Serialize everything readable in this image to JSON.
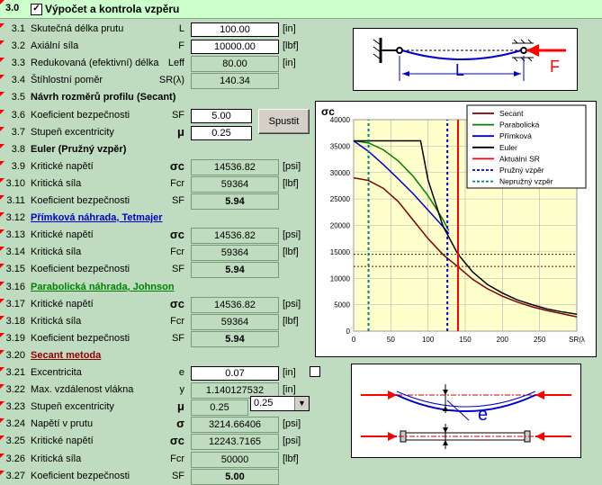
{
  "header": {
    "num": "3.0",
    "title": "Výpočet a kontrola vzpěru",
    "checked": true
  },
  "rows": [
    {
      "id": "r31",
      "num": "3.1",
      "label": "Skutečná délka prutu",
      "sym": "L",
      "value": "100.00",
      "unit": "[in]",
      "kind": "input"
    },
    {
      "id": "r32",
      "num": "3.2",
      "label": "Axiální síla",
      "sym": "F",
      "value": "10000.00",
      "unit": "[lbf]",
      "kind": "input"
    },
    {
      "id": "r33",
      "num": "3.3",
      "label": "Redukovaná (efektivní) délka",
      "sym": "Leff",
      "value": "80.00",
      "unit": "[in]",
      "kind": "calc"
    },
    {
      "id": "r34",
      "num": "3.4",
      "label": "Štíhlostní poměr",
      "sym": "SR(λ)",
      "value": "140.34",
      "unit": "",
      "kind": "calc"
    },
    {
      "id": "r35",
      "num": "3.5",
      "section": "Návrh rozměrů profilu (Secant)",
      "color": "#000000"
    },
    {
      "id": "r36",
      "num": "3.6",
      "label": "Koeficient bezpečnosti",
      "sym": "SF",
      "value": "5.00",
      "unit": "",
      "kind": "input"
    },
    {
      "id": "r37",
      "num": "3.7",
      "label": "Stupeň excentricity",
      "sym": "μ",
      "value": "0.25",
      "unit": "",
      "kind": "input"
    },
    {
      "id": "r38",
      "num": "3.8",
      "section": "Euler (Pružný vzpěr)",
      "color": "#000000"
    },
    {
      "id": "r39",
      "num": "3.9",
      "label": "Kritické napětí",
      "sym": "σc",
      "value": "14536.82",
      "unit": "[psi]",
      "kind": "calc"
    },
    {
      "id": "r310",
      "num": "3.10",
      "label": "Kritická síla",
      "sym": "Fcr",
      "value": "59364",
      "unit": "[lbf]",
      "kind": "calc"
    },
    {
      "id": "r311",
      "num": "3.11",
      "label": "Koeficient bezpečnosti",
      "sym": "SF",
      "value": "5.94",
      "unit": "",
      "kind": "bold"
    },
    {
      "id": "r312",
      "num": "3.12",
      "section": "Přímková náhrada, Tetmajer",
      "color": "#0000cc"
    },
    {
      "id": "r313",
      "num": "3.13",
      "label": "Kritické napětí",
      "sym": "σc",
      "value": "14536.82",
      "unit": "[psi]",
      "kind": "calc"
    },
    {
      "id": "r314",
      "num": "3.14",
      "label": "Kritická síla",
      "sym": "Fcr",
      "value": "59364",
      "unit": "[lbf]",
      "kind": "calc"
    },
    {
      "id": "r315",
      "num": "3.15",
      "label": "Koeficient bezpečnosti",
      "sym": "SF",
      "value": "5.94",
      "unit": "",
      "kind": "bold"
    },
    {
      "id": "r316",
      "num": "3.16",
      "section": "Parabolická náhrada, Johnson",
      "color": "#008000"
    },
    {
      "id": "r317",
      "num": "3.17",
      "label": "Kritické napětí",
      "sym": "σc",
      "value": "14536.82",
      "unit": "[psi]",
      "kind": "calc"
    },
    {
      "id": "r318",
      "num": "3.18",
      "label": "Kritická síla",
      "sym": "Fcr",
      "value": "59364",
      "unit": "[lbf]",
      "kind": "calc"
    },
    {
      "id": "r319",
      "num": "3.19",
      "label": "Koeficient bezpečnosti",
      "sym": "SF",
      "value": "5.94",
      "unit": "",
      "kind": "bold"
    },
    {
      "id": "r320",
      "num": "3.20",
      "section": "Secant metoda",
      "color": "#8b0000"
    },
    {
      "id": "r321",
      "num": "3.21",
      "label": "Excentricita",
      "sym": "e",
      "value": "0.07",
      "unit": "[in]",
      "kind": "input"
    },
    {
      "id": "r322",
      "num": "3.22",
      "label": "Max. vzdálenost vlákna",
      "sym": "y",
      "value": "1.140127532",
      "unit": "[in]",
      "kind": "calc"
    },
    {
      "id": "r323",
      "num": "3.23",
      "label": "Stupeň excentricity",
      "sym": "μ",
      "value": "0.25",
      "unit": "",
      "kind": "calc"
    },
    {
      "id": "r324",
      "num": "3.24",
      "label": "Napětí v prutu",
      "sym": "σ",
      "value": "3214.66406",
      "unit": "[psi]",
      "kind": "calc"
    },
    {
      "id": "r325",
      "num": "3.25",
      "label": "Kritické napětí",
      "sym": "σc",
      "value": "12243.7165",
      "unit": "[psi]",
      "kind": "calc"
    },
    {
      "id": "r326",
      "num": "3.26",
      "label": "Kritická síla",
      "sym": "Fcr",
      "value": "50000",
      "unit": "[lbf]",
      "kind": "calc"
    },
    {
      "id": "r327",
      "num": "3.27",
      "label": "Koeficient bezpečnosti",
      "sym": "SF",
      "value": "5.00",
      "unit": "",
      "kind": "bold"
    }
  ],
  "spustit_label": "Spustit",
  "ecc_dropdown": "0.25",
  "diagram_top": {
    "L": "L",
    "F": "F"
  },
  "diagram_bottom": {
    "e": "e"
  },
  "chart_data": {
    "type": "line",
    "ylabel": "σc",
    "xlabel": "SR(λ)",
    "xlim": [
      0,
      300
    ],
    "ylim": [
      0,
      40000
    ],
    "xticks": [
      0,
      50,
      100,
      150,
      200,
      250,
      300
    ],
    "yticks": [
      0,
      5000,
      10000,
      15000,
      20000,
      25000,
      30000,
      35000,
      40000
    ],
    "xtick_labels": [
      "0",
      "50",
      "100",
      "150",
      "200",
      "250",
      "SR(λ"
    ],
    "ytick_labels": [
      "0",
      "5000",
      "10000",
      "15000",
      "20000",
      "25000",
      "30000",
      "35000",
      "40000"
    ],
    "grid": true,
    "legend_position": "top-right",
    "series": [
      {
        "name": "Secant",
        "color": "#800000",
        "style": "solid",
        "x": [
          0,
          20,
          40,
          60,
          80,
          100,
          120,
          140,
          160,
          180,
          200,
          220,
          240,
          260,
          280,
          300
        ],
        "y": [
          29000,
          28500,
          27000,
          24500,
          21000,
          17500,
          14500,
          12200,
          9800,
          8000,
          6600,
          5500,
          4600,
          3900,
          3300,
          2700
        ]
      },
      {
        "name": "Parabolická",
        "color": "#008000",
        "style": "solid",
        "x": [
          0,
          20,
          40,
          60,
          80,
          100,
          110,
          120,
          128
        ],
        "y": [
          36000,
          35600,
          34300,
          32200,
          29300,
          25600,
          23400,
          21100,
          19000
        ]
      },
      {
        "name": "Přímková",
        "color": "#0000cc",
        "style": "solid",
        "x": [
          0,
          20,
          40,
          60,
          80,
          100,
          120,
          128
        ],
        "y": [
          36000,
          34000,
          31500,
          28800,
          26000,
          22900,
          19800,
          18400
        ]
      },
      {
        "name": "Euler",
        "color": "#000000",
        "style": "solid",
        "x": [
          0,
          90,
          100,
          120,
          140,
          160,
          180,
          200,
          220,
          240,
          260,
          280,
          300
        ],
        "y": [
          36000,
          36000,
          28600,
          19900,
          14600,
          11200,
          8800,
          7200,
          5900,
          5000,
          4200,
          3650,
          3200
        ]
      },
      {
        "name": "Aktuální SR",
        "color": "#ff0000",
        "style": "solid",
        "x": [
          140.34,
          140.34
        ],
        "y": [
          0,
          40000
        ]
      },
      {
        "name": "Pružný vzpěr",
        "color": "#0000cc",
        "style": "dashed",
        "x": [
          126,
          126
        ],
        "y": [
          0,
          40000
        ]
      },
      {
        "name": "Nepružný vzpěr",
        "color": "#008080",
        "style": "dashed",
        "x": [
          20,
          20
        ],
        "y": [
          0,
          40000
        ]
      }
    ],
    "hlines": [
      {
        "y": 14537,
        "color": "#004400",
        "style": "dotted"
      },
      {
        "y": 12244,
        "color": "#800000",
        "style": "dotted"
      }
    ]
  }
}
